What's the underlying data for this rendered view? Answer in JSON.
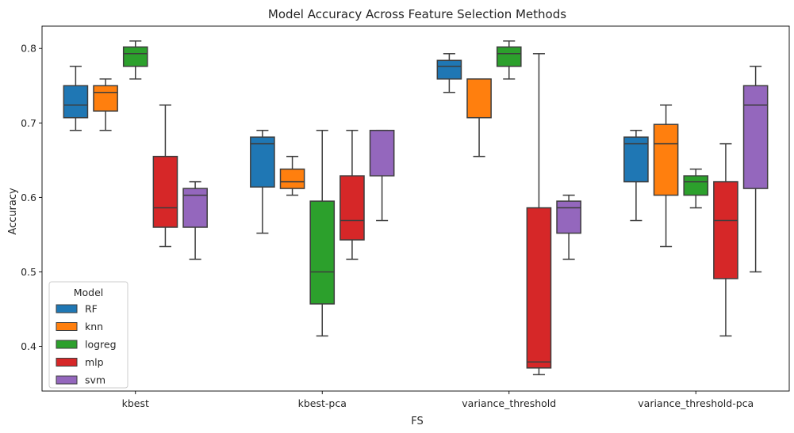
{
  "chart_data": {
    "type": "box",
    "title": "Model Accuracy Across Feature Selection Methods",
    "xlabel": "FS",
    "ylabel": "Accuracy",
    "categories": [
      "kbest",
      "kbest-pca",
      "variance_threshold",
      "variance_threshold-pca"
    ],
    "ylim": [
      0.34,
      0.83
    ],
    "yticks": [
      0.4,
      0.5,
      0.6,
      0.7,
      0.8
    ],
    "yticks_labels": [
      "0.4",
      "0.5",
      "0.6",
      "0.7",
      "0.8"
    ],
    "grid": false,
    "legend": {
      "title": "Model",
      "position": "bottom-left"
    },
    "series": [
      {
        "name": "RF",
        "color": "#1f77b4",
        "boxes": [
          {
            "whislo": 0.69,
            "q1": 0.707,
            "med": 0.724,
            "q3": 0.75,
            "whishi": 0.776
          },
          {
            "whislo": 0.552,
            "q1": 0.614,
            "med": 0.672,
            "q3": 0.681,
            "whishi": 0.69
          },
          {
            "whislo": 0.741,
            "q1": 0.759,
            "med": 0.776,
            "q3": 0.784,
            "whishi": 0.793
          },
          {
            "whislo": 0.569,
            "q1": 0.621,
            "med": 0.672,
            "q3": 0.681,
            "whishi": 0.69
          }
        ]
      },
      {
        "name": "knn",
        "color": "#ff7f0e",
        "boxes": [
          {
            "whislo": 0.69,
            "q1": 0.716,
            "med": 0.741,
            "q3": 0.75,
            "whishi": 0.759
          },
          {
            "whislo": 0.603,
            "q1": 0.612,
            "med": 0.621,
            "q3": 0.638,
            "whishi": 0.655
          },
          {
            "whislo": 0.655,
            "q1": 0.707,
            "med": 0.759,
            "q3": 0.759,
            "whishi": 0.759
          },
          {
            "whislo": 0.534,
            "q1": 0.603,
            "med": 0.672,
            "q3": 0.698,
            "whishi": 0.724
          }
        ]
      },
      {
        "name": "logreg",
        "color": "#2ca02c",
        "boxes": [
          {
            "whislo": 0.759,
            "q1": 0.776,
            "med": 0.793,
            "q3": 0.802,
            "whishi": 0.81
          },
          {
            "whislo": 0.414,
            "q1": 0.457,
            "med": 0.5,
            "q3": 0.595,
            "whishi": 0.69
          },
          {
            "whislo": 0.759,
            "q1": 0.776,
            "med": 0.793,
            "q3": 0.802,
            "whishi": 0.81
          },
          {
            "whislo": 0.586,
            "q1": 0.603,
            "med": 0.621,
            "q3": 0.629,
            "whishi": 0.638
          }
        ]
      },
      {
        "name": "mlp",
        "color": "#d62728",
        "boxes": [
          {
            "whislo": 0.534,
            "q1": 0.56,
            "med": 0.586,
            "q3": 0.655,
            "whishi": 0.724
          },
          {
            "whislo": 0.517,
            "q1": 0.543,
            "med": 0.569,
            "q3": 0.629,
            "whishi": 0.69
          },
          {
            "whislo": 0.362,
            "q1": 0.371,
            "med": 0.379,
            "q3": 0.586,
            "whishi": 0.793
          },
          {
            "whislo": 0.414,
            "q1": 0.491,
            "med": 0.569,
            "q3": 0.621,
            "whishi": 0.672
          }
        ]
      },
      {
        "name": "svm",
        "color": "#9467bd",
        "boxes": [
          {
            "whislo": 0.517,
            "q1": 0.56,
            "med": 0.603,
            "q3": 0.612,
            "whishi": 0.621
          },
          {
            "whislo": 0.569,
            "q1": 0.629,
            "med": 0.69,
            "q3": 0.69,
            "whishi": 0.69
          },
          {
            "whislo": 0.517,
            "q1": 0.552,
            "med": 0.586,
            "q3": 0.595,
            "whishi": 0.603
          },
          {
            "whislo": 0.5,
            "q1": 0.612,
            "med": 0.724,
            "q3": 0.75,
            "whishi": 0.776
          }
        ]
      }
    ]
  }
}
